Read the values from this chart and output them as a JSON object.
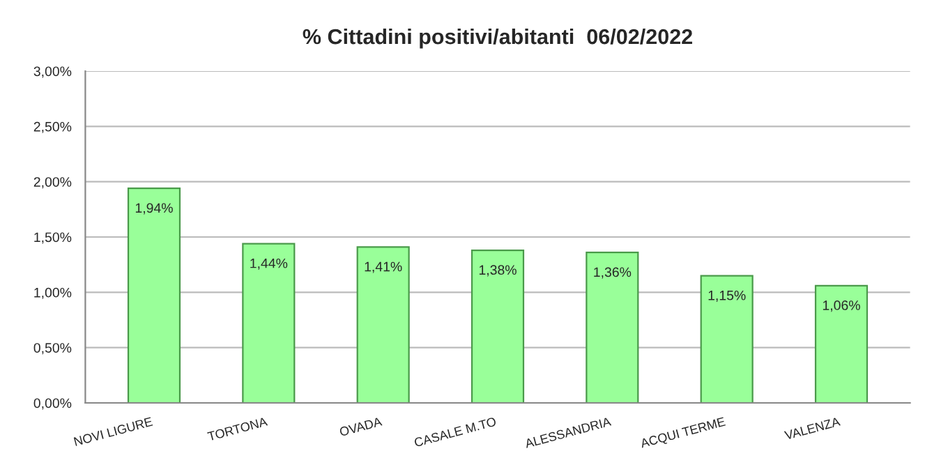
{
  "chart_data": {
    "type": "bar",
    "title": "% Cittadini positivi/abitanti  06/02/2022",
    "categories": [
      "NOVI LIGURE",
      "TORTONA",
      "OVADA",
      "CASALE M.TO",
      "ALESSANDRIA",
      "ACQUI TERME",
      "VALENZA"
    ],
    "values": [
      1.94,
      1.44,
      1.41,
      1.38,
      1.36,
      1.15,
      1.06
    ],
    "value_labels": [
      "1,94%",
      "1,44%",
      "1,41%",
      "1,38%",
      "1,36%",
      "1,15%",
      "1,06%"
    ],
    "color": "#99ff99",
    "ylim": [
      0,
      3
    ],
    "yticks": [
      {
        "value": 0,
        "label": "0,00%"
      },
      {
        "value": 0.5,
        "label": "0,50%"
      },
      {
        "value": 1,
        "label": "1,00%"
      },
      {
        "value": 1.5,
        "label": "1,50%"
      },
      {
        "value": 2,
        "label": "2,00%"
      },
      {
        "value": 2.5,
        "label": "2,50%"
      },
      {
        "value": 3,
        "label": "3,00%"
      }
    ],
    "grid": "y"
  }
}
